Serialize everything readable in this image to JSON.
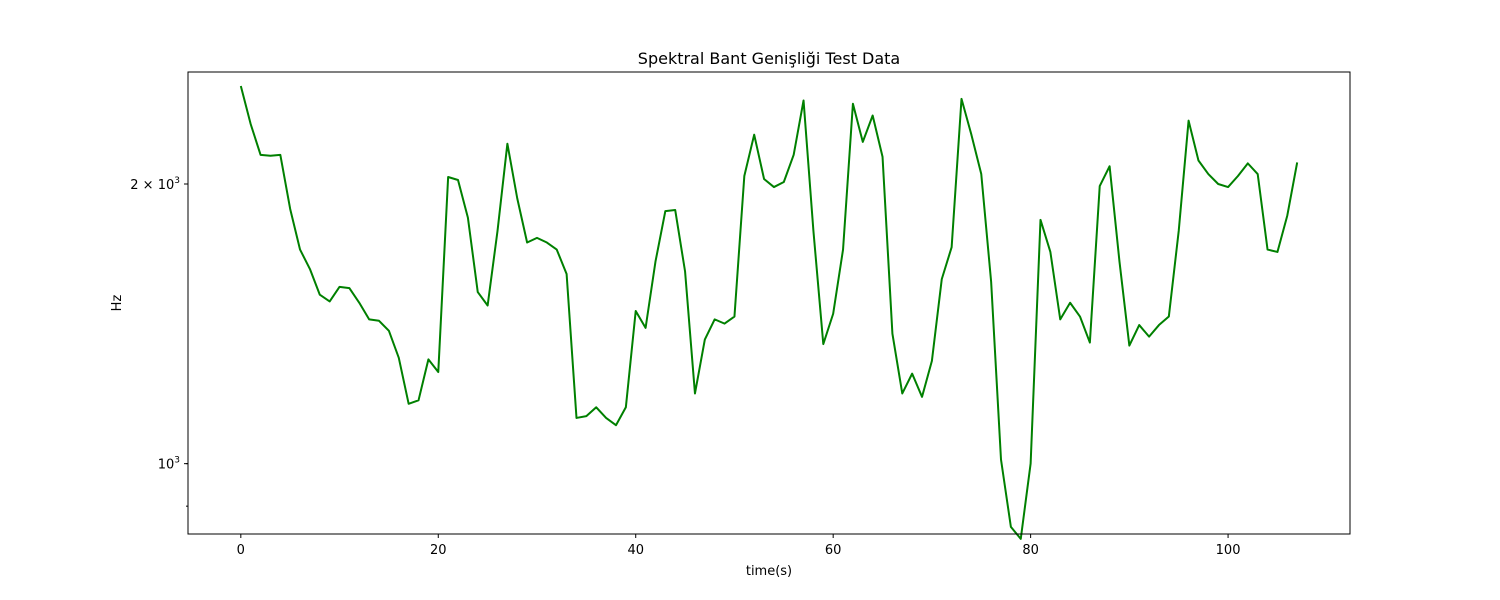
{
  "chart_data": {
    "type": "line",
    "title": "Spektral Bant Genişliği Test Data",
    "xlabel": "time(s)",
    "ylabel": "Hz",
    "yscale": "log",
    "xlim": [
      -5.35,
      112.35
    ],
    "ylim": [
      840,
      2640
    ],
    "xticks": [
      0,
      20,
      40,
      60,
      80,
      100
    ],
    "xtick_labels": [
      "0",
      "20",
      "40",
      "60",
      "80",
      "100"
    ],
    "yticks_major": [
      {
        "value": 1000,
        "base": "10",
        "exp": "3",
        "prefix": ""
      },
      {
        "value": 2000,
        "base": "10",
        "exp": "3",
        "prefix": "2 × "
      }
    ],
    "yticks_minor": [
      900,
      1000,
      2000
    ],
    "grid": false,
    "series": [
      {
        "color": "#008000",
        "x": [
          0,
          1,
          2,
          3,
          4,
          5,
          6,
          7,
          8,
          9,
          10,
          11,
          12,
          13,
          14,
          15,
          16,
          17,
          18,
          19,
          20,
          21,
          22,
          23,
          24,
          25,
          26,
          27,
          28,
          29,
          30,
          31,
          32,
          33,
          34,
          35,
          36,
          37,
          38,
          39,
          40,
          41,
          42,
          43,
          44,
          45,
          46,
          47,
          48,
          49,
          50,
          51,
          52,
          53,
          54,
          55,
          56,
          57,
          58,
          59,
          60,
          61,
          62,
          63,
          64,
          65,
          66,
          67,
          68,
          69,
          70,
          71,
          72,
          73,
          74,
          75,
          76,
          77,
          78,
          79,
          80,
          81,
          82,
          83,
          84,
          85,
          86,
          87,
          88,
          89,
          90,
          91,
          92,
          93,
          94,
          95,
          96,
          97,
          98,
          99,
          100,
          101,
          102,
          103,
          104,
          105,
          106,
          107
        ],
        "values": [
          2550,
          2320,
          2150,
          2145,
          2150,
          1880,
          1700,
          1620,
          1520,
          1495,
          1550,
          1545,
          1490,
          1430,
          1425,
          1390,
          1300,
          1160,
          1170,
          1295,
          1255,
          2035,
          2020,
          1840,
          1530,
          1480,
          1780,
          2210,
          1930,
          1730,
          1750,
          1730,
          1700,
          1600,
          1120,
          1125,
          1150,
          1120,
          1100,
          1150,
          1460,
          1400,
          1650,
          1870,
          1875,
          1610,
          1190,
          1360,
          1430,
          1415,
          1440,
          2040,
          2260,
          2025,
          1985,
          2010,
          2150,
          2460,
          1780,
          1345,
          1450,
          1700,
          2440,
          2220,
          2370,
          2140,
          1380,
          1190,
          1250,
          1180,
          1290,
          1580,
          1710,
          2470,
          2260,
          2050,
          1570,
          1010,
          855,
          830,
          1000,
          1830,
          1690,
          1430,
          1490,
          1440,
          1350,
          1990,
          2090,
          1650,
          1340,
          1410,
          1370,
          1410,
          1440,
          1780,
          2340,
          2120,
          2050,
          2000,
          1985,
          2040,
          2105,
          2050,
          1700,
          1690,
          1850,
          2110
        ]
      }
    ]
  }
}
